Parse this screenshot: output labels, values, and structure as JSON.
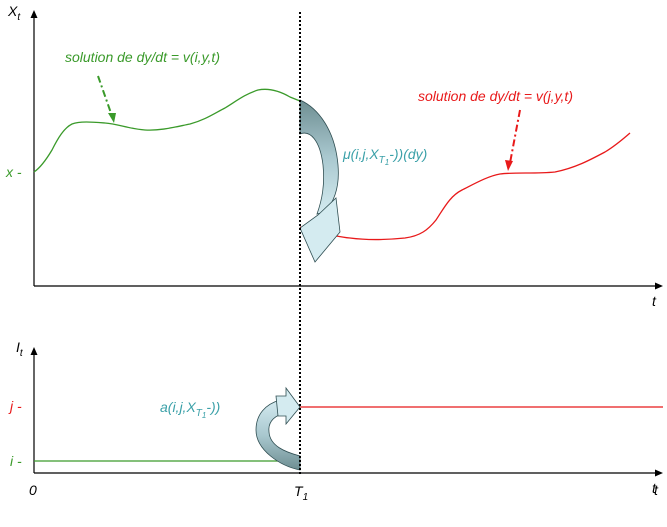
{
  "upper": {
    "axis_label_main": "X",
    "axis_label_sub": "t",
    "time_label": "t",
    "x_tick": "x -",
    "green_caption": "solution de dy/dt = v(i,y,t)",
    "red_caption": "solution de dy/dt = v(j,y,t)",
    "jump_measure_prefix": "μ(i,j,X",
    "jump_measure_sub": "T",
    "jump_measure_subsub": "1",
    "jump_measure_suffix": "-))(dy)"
  },
  "lower": {
    "axis_label_main": "I",
    "axis_label_sub": "t",
    "time_label": "t",
    "j_tick": "j -",
    "i_tick": "i -",
    "rate_prefix": "a(i,j,X",
    "rate_sub": "T",
    "rate_subsub": "1",
    "rate_suffix": "-))"
  },
  "bottom": {
    "origin": "0",
    "jump_time_main": "T",
    "jump_time_sub": "1",
    "end_time": "t"
  },
  "colors": {
    "green": "#3a9a2a",
    "red": "#e8191a",
    "teal": "#3aa0a8",
    "arrow_fill_light": "#c5e3ea",
    "arrow_fill_dark": "#6e8e92"
  }
}
